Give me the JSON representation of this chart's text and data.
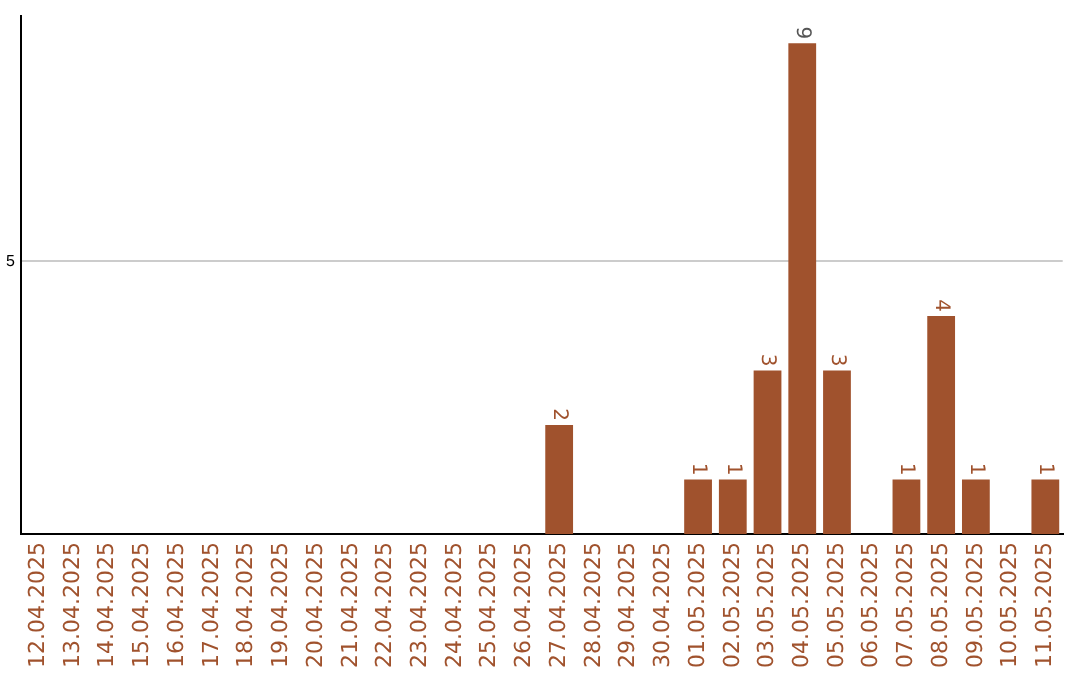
{
  "chart_data": {
    "type": "bar",
    "categories": [
      "12.04.2025",
      "13.04.2025",
      "14.04.2025",
      "15.04.2025",
      "16.04.2025",
      "17.04.2025",
      "18.04.2025",
      "19.04.2025",
      "20.04.2025",
      "21.04.2025",
      "22.04.2025",
      "23.04.2025",
      "24.04.2025",
      "25.04.2025",
      "26.04.2025",
      "27.04.2025",
      "28.04.2025",
      "29.04.2025",
      "30.04.2025",
      "01.05.2025",
      "02.05.2025",
      "03.05.2025",
      "04.05.2025",
      "05.05.2025",
      "06.05.2025",
      "07.05.2025",
      "08.05.2025",
      "09.05.2025",
      "10.05.2025",
      "11.05.2025"
    ],
    "values": [
      null,
      null,
      null,
      null,
      null,
      null,
      null,
      null,
      null,
      null,
      null,
      null,
      null,
      null,
      null,
      2,
      null,
      null,
      null,
      1,
      1,
      3,
      9,
      3,
      null,
      1,
      4,
      1,
      null,
      1
    ],
    "data_labels": true,
    "color": "#a0522d",
    "ylim": [
      0,
      9.5
    ],
    "yticks": [
      5
    ],
    "grid": "y",
    "legend": false
  }
}
